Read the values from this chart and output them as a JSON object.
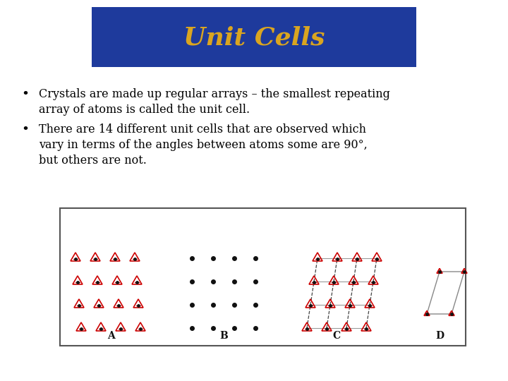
{
  "title": "Unit Cells",
  "title_color": "#DAA520",
  "title_bg_color": "#1E3A9C",
  "bg_color": "#FFFFFF",
  "bullet1_line1": "Crystals are made up regular arrays – the smallest repeating",
  "bullet1_line2": "array of atoms is called the unit cell.",
  "bullet2_line1": "There are 14 different unit cells that are observed which",
  "bullet2_line2": "vary in terms of the angles between atoms some are 90°,",
  "bullet2_line3": "but others are not.",
  "triangle_color": "#CC0000",
  "dot_color": "#111111",
  "grid_line_solid": "#999999",
  "grid_line_dash": "#444444",
  "label_color": "#111111",
  "box_border_color": "#555555",
  "section_labels": [
    "A",
    "B",
    "C",
    "D"
  ],
  "font_size_title": 26,
  "font_size_body": 11.5,
  "font_size_label": 10
}
